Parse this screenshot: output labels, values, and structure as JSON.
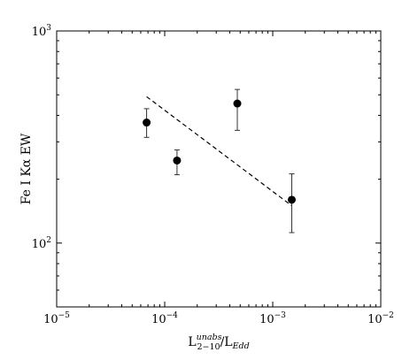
{
  "chart_data": {
    "type": "scatter",
    "title": "",
    "xlabel": {
      "base": "L",
      "sup": "unabs",
      "sub": "2−10",
      "sep": "/L",
      "sub2": "Edd"
    },
    "ylabel": "Fe I Kα EW",
    "xscale": "log",
    "yscale": "log",
    "xlim": [
      1e-05,
      0.01
    ],
    "ylim": [
      50,
      1000
    ],
    "grid": false,
    "legend": "none",
    "x_ticks": [
      {
        "value": 1e-05,
        "base": "10",
        "exp": "−5"
      },
      {
        "value": 0.0001,
        "base": "10",
        "exp": "−4"
      },
      {
        "value": 0.001,
        "base": "10",
        "exp": "−3"
      },
      {
        "value": 0.01,
        "base": "10",
        "exp": "−2"
      }
    ],
    "y_ticks": [
      {
        "value": 100,
        "base": "10",
        "exp": "2"
      },
      {
        "value": 1000,
        "base": "10",
        "exp": "3"
      }
    ],
    "points": [
      {
        "x": 6.8e-05,
        "y": 370,
        "ylow": 315,
        "yhigh": 430
      },
      {
        "x": 0.00013,
        "y": 245,
        "ylow": 210,
        "yhigh": 275
      },
      {
        "x": 0.00047,
        "y": 455,
        "ylow": 340,
        "yhigh": 530
      },
      {
        "x": 0.0015,
        "y": 160,
        "ylow": 112,
        "yhigh": 212
      }
    ],
    "fit_line": {
      "style": "dashed",
      "x": [
        6.8e-05,
        0.0015
      ],
      "y": [
        490,
        150
      ]
    }
  }
}
